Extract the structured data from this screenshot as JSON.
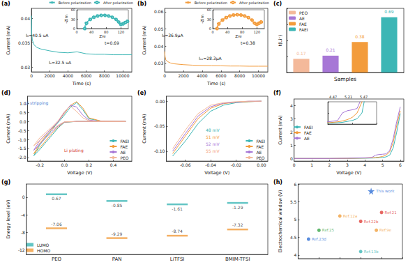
{
  "chart_data": [
    {
      "panel": "(a)",
      "type": "line",
      "x_label": "Time (s)",
      "y_label": "Current (mA)",
      "xlim": [
        0,
        11000
      ],
      "xticks": [
        0,
        2000,
        4000,
        6000,
        8000,
        10000
      ],
      "ylim": [
        0.029,
        0.042
      ],
      "yticks": [
        0.03,
        0.035,
        0.04
      ],
      "series": [
        {
          "color": "#3cb6b5",
          "x": [
            0,
            30,
            100,
            300,
            600,
            1000,
            2000,
            3000,
            4000,
            5000,
            6000,
            7000,
            8000,
            9000,
            10000,
            11000
          ],
          "values": [
            0.0405,
            0.037,
            0.0355,
            0.0345,
            0.034,
            0.0337,
            0.0333,
            0.033,
            0.0329,
            0.0331,
            0.0327,
            0.0326,
            0.0326,
            0.0325,
            0.0325,
            0.0325
          ]
        }
      ],
      "annotations": [
        "I₀=40.5 uA",
        "Iₛ=32.5 uA",
        "t=0.69"
      ],
      "inset": {
        "type": "line",
        "x_label": "Zre",
        "y_label": "-Zim",
        "xlim": [
          0,
          140
        ],
        "xticks": [
          0,
          40,
          80,
          120
        ],
        "ylim": [
          0,
          60
        ],
        "yticks": [
          0,
          30,
          60
        ],
        "legend": "top",
        "series": [
          {
            "name": "Before polarization",
            "color": "#3cb6b5",
            "marker": "circle",
            "x": [
              20,
              25,
              35,
              45,
              55,
              65,
              75,
              85,
              95,
              105,
              112,
              118,
              124,
              130,
              136
            ],
            "values": [
              0,
              18,
              30,
              37,
              41,
              43,
              43,
              41,
              37,
              30,
              22,
              14,
              16,
              20,
              24
            ]
          },
          {
            "name": "After polarization",
            "color": "#3cb6b5",
            "marker": "emptyCircle",
            "x": [
              22,
              27,
              37,
              47,
              57,
              67,
              77,
              87,
              97,
              107,
              114,
              120,
              126,
              132,
              138
            ],
            "values": [
              0,
              17,
              29,
              36,
              40,
              42,
              42,
              40,
              36,
              29,
              21,
              13,
              15,
              19,
              23
            ]
          }
        ]
      }
    },
    {
      "panel": "(b)",
      "type": "line",
      "x_label": "Time (s)",
      "y_label": "Current (mA)",
      "xlim": [
        0,
        11000
      ],
      "xticks": [
        0,
        2000,
        4000,
        6000,
        8000,
        10000
      ],
      "ylim": [
        0.025,
        0.062
      ],
      "yticks": [
        0.03,
        0.04,
        0.05,
        0.06
      ],
      "series": [
        {
          "color": "#f39c3c",
          "x": [
            0,
            30,
            100,
            300,
            600,
            1000,
            2000,
            3000,
            4000,
            5000,
            6000,
            7000,
            8000,
            9000,
            10000,
            11000
          ],
          "values": [
            0.0369,
            0.034,
            0.0322,
            0.031,
            0.0302,
            0.0297,
            0.0292,
            0.0289,
            0.0287,
            0.0286,
            0.0285,
            0.0284,
            0.0284,
            0.0283,
            0.0283,
            0.0283
          ]
        }
      ],
      "annotations": [
        "I₀=36.9μA",
        "Iₛₛ=28.3μA",
        "t=0.38"
      ],
      "inset": {
        "type": "line",
        "x_label": "Zre",
        "y_label": "-Zim",
        "xlim": [
          0,
          140
        ],
        "xticks": [
          0,
          40,
          80,
          120
        ],
        "ylim": [
          0,
          60
        ],
        "yticks": [
          0,
          30,
          60
        ],
        "legend": "top",
        "series": [
          {
            "name": "Before polarization",
            "color": "#f39c3c",
            "marker": "circle",
            "x": [
              10,
              15,
              25,
              35,
              45,
              55,
              65,
              75,
              85,
              95,
              105,
              112,
              118,
              124,
              130
            ],
            "values": [
              0,
              16,
              28,
              36,
              41,
              44,
              45,
              44,
              41,
              36,
              28,
              18,
              14,
              18,
              22
            ]
          },
          {
            "name": "After polarization",
            "color": "#f39c3c",
            "marker": "emptyCircle",
            "x": [
              12,
              17,
              27,
              37,
              47,
              57,
              67,
              77,
              87,
              97,
              107,
              114,
              120,
              126,
              132
            ],
            "values": [
              0,
              15,
              27,
              35,
              40,
              43,
              44,
              43,
              40,
              35,
              27,
              17,
              13,
              17,
              21
            ]
          }
        ]
      }
    },
    {
      "panel": "(c)",
      "type": "bar",
      "x_label": "Samples",
      "y_label": "t(Li⁺)",
      "categories": [
        "PEO",
        "AE",
        "FAE",
        "FAEI"
      ],
      "values": [
        0.17,
        0.21,
        0.38,
        0.69
      ],
      "colors": [
        "#f4b99a",
        "#a777d6",
        "#f39c3c",
        "#3cb6b5"
      ],
      "ylim": [
        0,
        0.8
      ],
      "yticks": [
        0,
        0.2,
        0.4,
        0.6,
        0.8
      ],
      "data_labels": true,
      "tick_labels": false,
      "legend": "top-left"
    },
    {
      "panel": "(d)",
      "type": "line",
      "x_label": "Voltage (V)",
      "y_label": "Current (mA)",
      "xlim": [
        -0.3,
        0.55
      ],
      "xticks": [
        -0.2,
        {
          "value": 0,
          "label": "0.0"
        },
        0.2,
        0.4
      ],
      "ylim": [
        -2.2,
        1.4
      ],
      "yticks": [
        {
          "value": -2,
          "label": "-2.0"
        },
        -1.5,
        {
          "value": -1,
          "label": "-1.0"
        },
        -0.5,
        {
          "value": 0,
          "label": "0.0"
        },
        0.5,
        {
          "value": 1,
          "label": "1.0"
        }
      ],
      "legend": "bottom-right",
      "series": [
        {
          "name": "FAEI",
          "color": "#3cb6b5",
          "x": [
            0.5,
            0.3,
            0.1,
            0,
            -0.05,
            -0.1,
            -0.15,
            -0.2,
            -0.25,
            -0.2,
            -0.15,
            -0.1,
            -0.05,
            0,
            0.05,
            0.1,
            0.15,
            0.2,
            0.3,
            0.5
          ],
          "values": [
            0,
            0,
            0,
            -0.05,
            -0.35,
            -0.75,
            -1.15,
            -1.55,
            -1.9,
            -1.3,
            -0.85,
            -0.45,
            -0.05,
            0.35,
            0.8,
            1.05,
            0.65,
            0.15,
            0.02,
            0
          ]
        },
        {
          "name": "FAE",
          "color": "#f39c3c",
          "x": [
            0.5,
            0.3,
            0.1,
            0,
            -0.05,
            -0.1,
            -0.15,
            -0.2,
            -0.25,
            -0.2,
            -0.15,
            -0.1,
            -0.05,
            0,
            0.05,
            0.1,
            0.15,
            0.2,
            0.3,
            0.5
          ],
          "values": [
            0,
            0,
            0,
            -0.04,
            -0.3,
            -0.65,
            -1.05,
            -1.45,
            -1.8,
            -1.2,
            -0.8,
            -0.4,
            0,
            0.45,
            0.9,
            1.1,
            0.75,
            0.2,
            0.02,
            0
          ]
        },
        {
          "name": "AE",
          "color": "#a777d6",
          "x": [
            0.5,
            0.3,
            0.1,
            0,
            -0.05,
            -0.1,
            -0.15,
            -0.2,
            -0.25,
            -0.2,
            -0.15,
            -0.1,
            -0.05,
            0,
            0.05,
            0.1,
            0.15,
            0.2,
            0.3,
            0.5
          ],
          "values": [
            0,
            0,
            0,
            -0.03,
            -0.25,
            -0.55,
            -0.9,
            -1.25,
            -1.6,
            -1.05,
            -0.7,
            -0.35,
            0,
            0.5,
            0.9,
            0.8,
            0.35,
            0.08,
            0,
            0
          ]
        },
        {
          "name": "PEO",
          "color": "#f4b99a",
          "x": [
            0.5,
            0.3,
            0.1,
            0,
            -0.05,
            -0.1,
            -0.15,
            -0.2,
            -0.25,
            -0.2,
            -0.15,
            -0.1,
            -0.05,
            0,
            0.05,
            0.1,
            0.15,
            0.2,
            0.3,
            0.5
          ],
          "values": [
            0,
            0,
            0,
            -0.02,
            -0.2,
            -0.45,
            -0.75,
            -1.05,
            -1.35,
            -0.9,
            -0.6,
            -0.3,
            0.05,
            0.55,
            0.85,
            0.55,
            0.2,
            0.04,
            0,
            0
          ]
        }
      ],
      "annotations": [
        {
          "text": "Li stripping",
          "color": "#4a7fd0"
        },
        {
          "text": "Li plating",
          "color": "#d23c3c"
        }
      ]
    },
    {
      "panel": "(e)",
      "type": "line",
      "x_label": "Voltage (V)",
      "y_label": "Current (mA)",
      "xlim": [
        -0.075,
        0.005
      ],
      "xticks": [
        -0.06,
        -0.04,
        -0.02,
        {
          "value": 0,
          "label": "0.00"
        }
      ],
      "ylim": [
        -0.12,
        0.01
      ],
      "yticks": [
        {
          "value": -0.1,
          "label": "-0.10"
        },
        -0.05,
        {
          "value": 0,
          "label": "0.00"
        }
      ],
      "legend": "bottom-right",
      "series": [
        {
          "name": "FAEI",
          "color": "#3cb6b5",
          "x": [
            0,
            -0.01,
            -0.02,
            -0.03,
            -0.04,
            -0.05,
            -0.06,
            -0.07
          ],
          "values": [
            0,
            -0.001,
            -0.003,
            -0.008,
            -0.02,
            -0.045,
            -0.08,
            -0.11
          ]
        },
        {
          "name": "FAE",
          "color": "#f39c3c",
          "x": [
            0,
            -0.01,
            -0.02,
            -0.03,
            -0.04,
            -0.05,
            -0.06,
            -0.07
          ],
          "values": [
            0,
            -0.001,
            -0.002,
            -0.005,
            -0.014,
            -0.035,
            -0.07,
            -0.105
          ]
        },
        {
          "name": "AE",
          "color": "#a777d6",
          "x": [
            0,
            -0.01,
            -0.02,
            -0.03,
            -0.04,
            -0.05,
            -0.06,
            -0.07
          ],
          "values": [
            0,
            0,
            -0.002,
            -0.004,
            -0.011,
            -0.03,
            -0.065,
            -0.1
          ]
        },
        {
          "name": "PEO",
          "color": "#f4b99a",
          "x": [
            0,
            -0.01,
            -0.02,
            -0.03,
            -0.04,
            -0.05,
            -0.06,
            -0.07
          ],
          "values": [
            0,
            0,
            -0.001,
            -0.003,
            -0.008,
            -0.025,
            -0.058,
            -0.095
          ]
        }
      ],
      "annotations": [
        {
          "text": "48 mV",
          "color": "#3cb6b5"
        },
        {
          "text": "51 mV",
          "color": "#f39c3c"
        },
        {
          "text": "52 mV",
          "color": "#a777d6"
        },
        {
          "text": "55 mV",
          "color": "#f4a07a"
        }
      ]
    },
    {
      "panel": "(f)",
      "type": "line",
      "x_label": "Voltage (V)",
      "y_label": "Current (mA)",
      "xlim": [
        0,
        6.2
      ],
      "xticks": [
        0,
        1,
        2,
        3,
        4,
        5,
        6
      ],
      "ylim": [
        -0.2,
        4.5
      ],
      "yticks": [
        0,
        1,
        2,
        3,
        4
      ],
      "legend": "left",
      "series": [
        {
          "name": "FAEI",
          "color": "#3cb6b5",
          "x": [
            0,
            1,
            2,
            3,
            4,
            4.4,
            4.6,
            4.8,
            5,
            5.2,
            5.4,
            5.6,
            5.8,
            6
          ],
          "values": [
            0,
            0,
            0,
            0,
            0.02,
            0.03,
            0.04,
            0.06,
            0.08,
            0.12,
            0.25,
            0.8,
            2,
            3.4
          ]
        },
        {
          "name": "FAE",
          "color": "#f39c3c",
          "x": [
            0,
            1,
            2,
            3,
            4,
            4.4,
            4.6,
            4.8,
            5,
            5.2,
            5.4,
            5.6,
            5.8,
            6
          ],
          "values": [
            0,
            0,
            0,
            0.01,
            0.03,
            0.05,
            0.07,
            0.1,
            0.15,
            0.25,
            0.5,
            1.2,
            2.5,
            3.6
          ]
        },
        {
          "name": "AE",
          "color": "#a777d6",
          "x": [
            0,
            1,
            2,
            3,
            4,
            4.4,
            4.6,
            4.8,
            5,
            5.2,
            5.4,
            5.6,
            5.8,
            6
          ],
          "values": [
            0,
            0,
            0,
            0.02,
            0.05,
            0.08,
            0.25,
            0.3,
            0.32,
            0.35,
            0.6,
            1.5,
            2.8,
            3.9
          ]
        }
      ],
      "inset": {
        "type": "line",
        "xlim": [
          4,
          6
        ],
        "xticks": [
          4,
          5,
          6
        ],
        "ylim": [
          0,
          0.5
        ],
        "yticks": [
          0,
          0.25,
          0.5
        ],
        "tick_labels": false,
        "annotations": [
          "4.47",
          "5.21",
          "5.47"
        ]
      }
    },
    {
      "panel": "(g)",
      "type": "scatter",
      "y_label": "Energy level (eV)",
      "categories": [
        "PEO",
        "PAN",
        "LiTFSI",
        "BMIM-TFSI"
      ],
      "ylim": [
        -13,
        3
      ],
      "yticks": [
        -12,
        -8,
        -4,
        0
      ],
      "legend": "bottom-left",
      "data_labels": true,
      "series": [
        {
          "name": "LUMO",
          "color": "#3cb6b5",
          "marker": "line",
          "values": [
            0.67,
            -0.85,
            -1.61,
            -1.29
          ]
        },
        {
          "name": "HOMO",
          "color": "#f39c3c",
          "marker": "line",
          "values": [
            -7.06,
            -9.29,
            -8.74,
            -7.32
          ]
        }
      ]
    },
    {
      "panel": "(h)",
      "type": "scatter",
      "y_label": "Electrochemical window (V)",
      "xlim": [
        0,
        10
      ],
      "xticks": [
        0,
        2,
        4,
        6,
        8,
        10
      ],
      "ylim": [
        3.9,
        6
      ],
      "yticks": [
        4,
        4.5,
        5,
        5.5,
        6
      ],
      "tick_labels": "y",
      "series": [
        {
          "marker": "star",
          "color": "#2f6fd6",
          "x": [
            7
          ],
          "values": [
            5.8
          ],
          "labels": [
            "This work"
          ]
        },
        {
          "marker": "circle",
          "x": [
            8,
            4,
            6,
            7.5,
            2,
            1,
            6
          ],
          "values": [
            5.2,
            5.1,
            4.95,
            4.7,
            4.7,
            4.45,
            4.1
          ],
          "labels": [
            "Ref.21",
            "Ref.12a",
            "Ref.22b",
            "Ref.9e",
            "Ref.25",
            "Ref.23d",
            "Ref.13b"
          ],
          "colors": [
            "#e0403a",
            "#f0a040",
            "#e0403a",
            "#f0a040",
            "#3aa64a",
            "#2f6fd6",
            "#3cb6b5"
          ]
        }
      ]
    }
  ]
}
